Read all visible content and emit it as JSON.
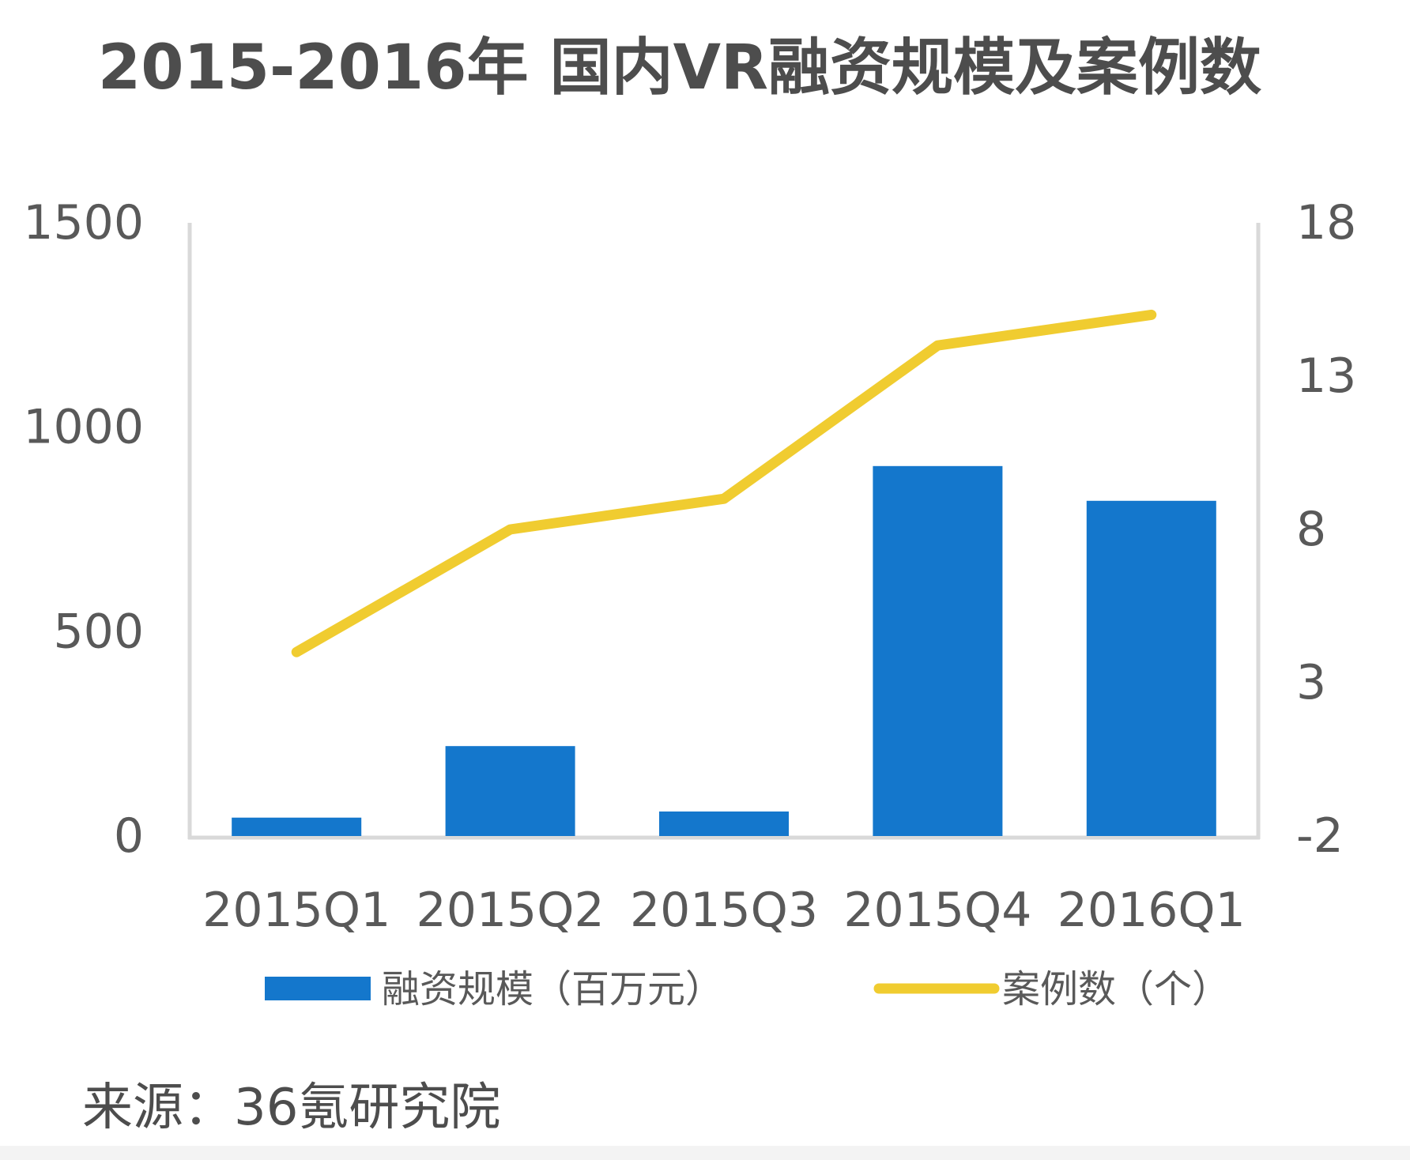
{
  "chart_data": {
    "type": "bar",
    "title": "2015-2016年 国内VR融资规模及案例数",
    "categories": [
      "2015Q1",
      "2015Q2",
      "2015Q3",
      "2015Q4",
      "2016Q1"
    ],
    "series": [
      {
        "name": "融资规模（百万元）",
        "type": "bar",
        "axis": "left",
        "color": "#1477cc",
        "values": [
          45,
          220,
          60,
          905,
          820
        ]
      },
      {
        "name": "案例数（个）",
        "type": "line",
        "axis": "right",
        "color": "#f0cc30",
        "values": [
          4,
          8,
          9,
          14,
          15
        ]
      }
    ],
    "y_left": {
      "ylim": [
        0,
        1500
      ],
      "ticks": [
        "0",
        "500",
        "1000",
        "1500"
      ]
    },
    "y_right": {
      "ylim": [
        -2,
        18
      ],
      "ticks": [
        "-2",
        "3",
        "8",
        "13",
        "18"
      ]
    },
    "grid": false,
    "legend_position": "bottom",
    "source": "来源：36氪研究院"
  }
}
